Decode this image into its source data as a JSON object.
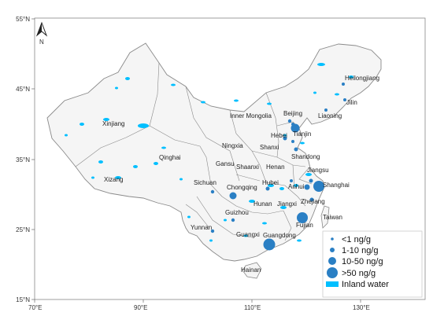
{
  "axes": {
    "lat_ticks": [
      "55°N",
      "45°N",
      "35°N",
      "25°N",
      "15°N"
    ],
    "lon_ticks": [
      "70°E",
      "90°E",
      "110°E",
      "130°E"
    ]
  },
  "north_arrow": {
    "label": "N",
    "icon": "north-arrow-icon"
  },
  "provinces": [
    {
      "name": "Heilongjiang"
    },
    {
      "name": "Jilin"
    },
    {
      "name": "Liaoning"
    },
    {
      "name": "Beijing"
    },
    {
      "name": "Inner Mongolia"
    },
    {
      "name": "Tianjin"
    },
    {
      "name": "Hebei"
    },
    {
      "name": "Xinjiang"
    },
    {
      "name": "Ningxia"
    },
    {
      "name": "Shanxi"
    },
    {
      "name": "Shandong"
    },
    {
      "name": "Qinghai"
    },
    {
      "name": "Gansu"
    },
    {
      "name": "Henan"
    },
    {
      "name": "Shaanxi"
    },
    {
      "name": "Jiangsu"
    },
    {
      "name": "Xizang"
    },
    {
      "name": "Sichuan"
    },
    {
      "name": "Chongqing"
    },
    {
      "name": "Hubei"
    },
    {
      "name": "Anhui"
    },
    {
      "name": "Shanghai"
    },
    {
      "name": "Zhejiang"
    },
    {
      "name": "Hunan"
    },
    {
      "name": "Jiangxi"
    },
    {
      "name": "Guizhou"
    },
    {
      "name": "Taiwan"
    },
    {
      "name": "Fujian"
    },
    {
      "name": "Yunnan"
    },
    {
      "name": "Guangxi"
    },
    {
      "name": "Guangdong"
    },
    {
      "name": "Hainan"
    }
  ],
  "legend": [
    {
      "label": "<1 ng/g",
      "symbol": "circle-xs"
    },
    {
      "label": "1-10 ng/g",
      "symbol": "circle-s"
    },
    {
      "label": "10-50 ng/g",
      "symbol": "circle-m"
    },
    {
      "label": ">50 ng/g",
      "symbol": "circle-l"
    },
    {
      "label": "Inland water",
      "symbol": "water-rect"
    }
  ],
  "colors": {
    "land": "#f5f5f5",
    "border": "#8a8a8a",
    "water": "#00bfff",
    "marker": "#2a7fc4"
  }
}
